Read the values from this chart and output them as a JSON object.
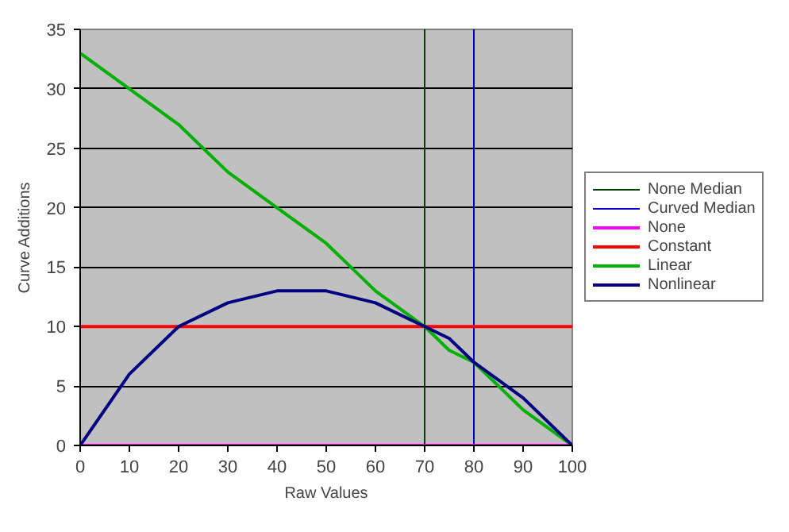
{
  "chart_data": {
    "type": "line",
    "xlabel": "Raw Values",
    "ylabel": "Curve Additions",
    "xlim": [
      0,
      100
    ],
    "ylim": [
      0,
      35
    ],
    "xticks": [
      0,
      10,
      20,
      30,
      40,
      50,
      60,
      70,
      80,
      90,
      100
    ],
    "yticks": [
      0,
      5,
      10,
      15,
      20,
      25,
      30,
      35
    ],
    "grid": "y",
    "legend": "right",
    "marker": "none",
    "series": [
      {
        "name": "None Median",
        "color": "#004000",
        "x": [
          70,
          70
        ],
        "values": [
          0,
          35
        ]
      },
      {
        "name": "Curved Median",
        "color": "#0000cc",
        "x": [
          80,
          80
        ],
        "values": [
          0,
          35
        ]
      },
      {
        "name": "None",
        "color": "#ff00ff",
        "x": [
          0,
          100
        ],
        "values": [
          0,
          0
        ]
      },
      {
        "name": "Constant",
        "color": "#ff0000",
        "x": [
          0,
          100
        ],
        "values": [
          10,
          10
        ]
      },
      {
        "name": "Linear",
        "color": "#00b000",
        "x": [
          0,
          10,
          20,
          25,
          30,
          40,
          50,
          55,
          60,
          70,
          75,
          80,
          85,
          90,
          100
        ],
        "values": [
          33,
          30,
          27,
          25,
          23,
          20,
          17,
          15,
          13,
          10,
          8,
          7,
          5,
          3,
          0
        ]
      },
      {
        "name": "Nonlinear",
        "color": "#000080",
        "x": [
          0,
          10,
          20,
          30,
          40,
          50,
          60,
          70,
          75,
          80,
          90,
          100
        ],
        "values": [
          0,
          6,
          10,
          12,
          13,
          13,
          12,
          10,
          9,
          7,
          4,
          0
        ]
      }
    ]
  }
}
